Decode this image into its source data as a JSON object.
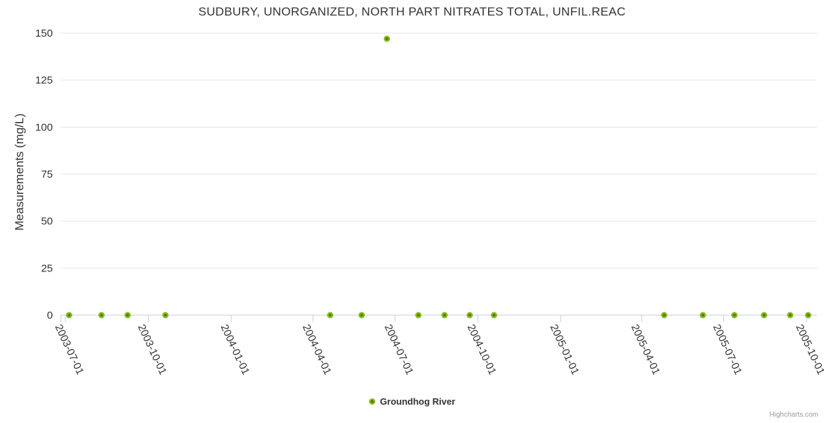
{
  "chart_data": {
    "type": "scatter",
    "title": "SUDBURY, UNORGANIZED, NORTH PART NITRATES TOTAL, UNFIL.REAC",
    "xlabel": "",
    "ylabel": "Measurements (mg/L)",
    "ylim": [
      0,
      150
    ],
    "yticks": [
      0,
      25,
      50,
      75,
      100,
      125,
      150
    ],
    "xticks": [
      "2003-07-01",
      "2003-10-01",
      "2004-01-01",
      "2004-04-01",
      "2004-07-01",
      "2004-10-01",
      "2005-01-01",
      "2005-04-01",
      "2005-07-01",
      "2005-10-01"
    ],
    "x_tick_label_rotation_deg": 65,
    "grid": "horizontal-only",
    "legend_position": "bottom-center",
    "series": [
      {
        "name": "Groundhog River",
        "marker_color": "#86bc1b",
        "marker_inner_color": "#527e0a",
        "points": [
          {
            "date": "2003-07-05",
            "value": 0
          },
          {
            "date": "2003-08-10",
            "value": 0
          },
          {
            "date": "2003-09-08",
            "value": 0
          },
          {
            "date": "2003-10-20",
            "value": 0
          },
          {
            "date": "2004-04-20",
            "value": 0
          },
          {
            "date": "2004-05-25",
            "value": 0
          },
          {
            "date": "2004-06-22",
            "value": 147
          },
          {
            "date": "2004-07-27",
            "value": 0
          },
          {
            "date": "2004-08-25",
            "value": 0
          },
          {
            "date": "2004-09-22",
            "value": 0
          },
          {
            "date": "2004-10-19",
            "value": 0
          },
          {
            "date": "2005-04-26",
            "value": 0
          },
          {
            "date": "2005-06-08",
            "value": 0
          },
          {
            "date": "2005-07-13",
            "value": 0
          },
          {
            "date": "2005-08-15",
            "value": 0
          },
          {
            "date": "2005-09-13",
            "value": 0
          },
          {
            "date": "2005-10-03",
            "value": 0
          }
        ]
      }
    ],
    "colors": {
      "text": "#333333",
      "grid": "#e6e6e6",
      "axis": "#c0d0e0",
      "background": "#ffffff"
    }
  },
  "credits": {
    "label": "Highcharts.com"
  }
}
